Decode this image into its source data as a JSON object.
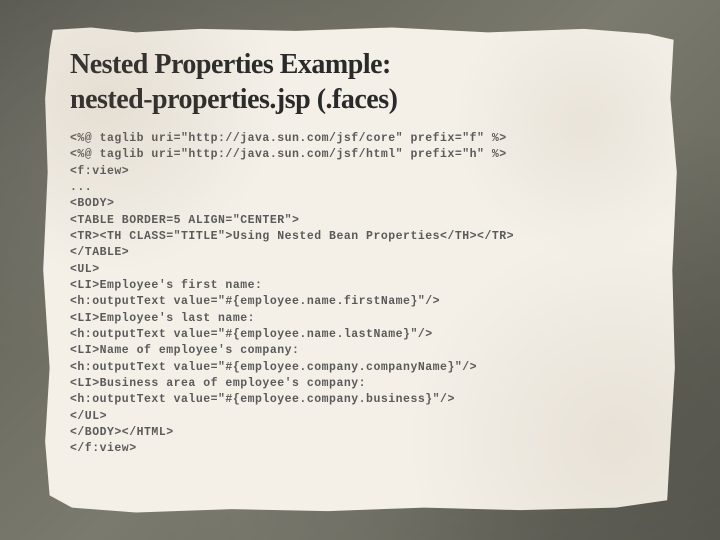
{
  "title_line1": "Nested Properties Example:",
  "title_line2": "nested-properties.jsp (.faces)",
  "code_lines": [
    "<%@ taglib uri=\"http://java.sun.com/jsf/core\" prefix=\"f\" %>",
    "<%@ taglib uri=\"http://java.sun.com/jsf/html\" prefix=\"h\" %>",
    "<f:view>",
    "...",
    "<BODY>",
    "<TABLE BORDER=5 ALIGN=\"CENTER\">",
    "<TR><TH CLASS=\"TITLE\">Using Nested Bean Properties</TH></TR>",
    "</TABLE>",
    "<UL>",
    "<LI>Employee's first name:",
    "<h:outputText value=\"#{employee.name.firstName}\"/>",
    "<LI>Employee's last name:",
    "<h:outputText value=\"#{employee.name.lastName}\"/>",
    "<LI>Name of employee's company:",
    "<h:outputText value=\"#{employee.company.companyName}\"/>",
    "<LI>Business area of employee's company:",
    "<h:outputText value=\"#{employee.company.business}\"/>",
    "</UL>",
    "</BODY></HTML>",
    "</f:view>"
  ],
  "colors": {
    "bg_dark": "#5a5a52",
    "paper": "#f4f0e8",
    "title_text": "#2a2a2a",
    "code_text": "#5a5a5a"
  },
  "fonts": {
    "title_family": "Georgia, serif",
    "title_size_pt": 21,
    "code_family": "Courier New, monospace",
    "code_size_pt": 9
  }
}
